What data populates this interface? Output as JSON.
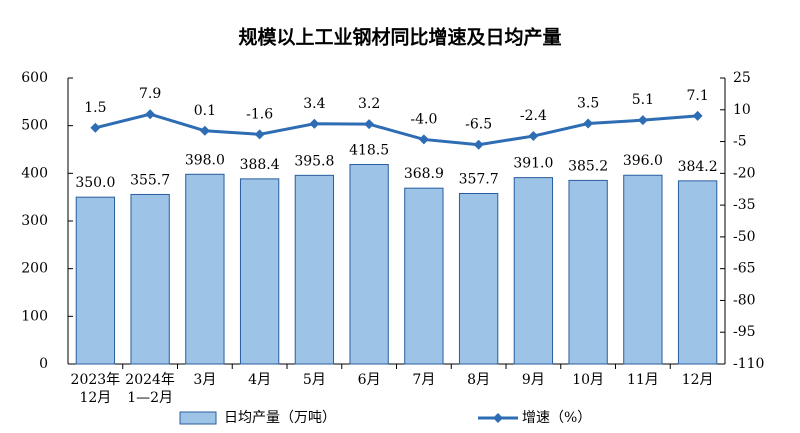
{
  "chart_data": {
    "type": "combo",
    "title": "规模以上工业钢材同比增速及日均产量",
    "categories": [
      [
        "2023年",
        "12月"
      ],
      [
        "2024年",
        "1—2月"
      ],
      [
        "3月"
      ],
      [
        "4月"
      ],
      [
        "5月"
      ],
      [
        "6月"
      ],
      [
        "7月"
      ],
      [
        "8月"
      ],
      [
        "9月"
      ],
      [
        "10月"
      ],
      [
        "11月"
      ],
      [
        "12月"
      ]
    ],
    "series": [
      {
        "name": "日均产量（万吨）",
        "type": "bar",
        "color": "#9dc3e6",
        "values": [
          350.0,
          355.7,
          398.0,
          388.4,
          395.8,
          418.5,
          368.9,
          357.7,
          391.0,
          385.2,
          396.0,
          384.2
        ],
        "value_labels": [
          "350.0",
          "355.7",
          "398.0",
          "388.4",
          "395.8",
          "418.5",
          "368.9",
          "357.7",
          "391.0",
          "385.2",
          "396.0",
          "384.2"
        ]
      },
      {
        "name": "增速（%）",
        "type": "line",
        "axis": "y2",
        "color": "#2e6db4",
        "values": [
          1.5,
          7.9,
          0.1,
          -1.6,
          3.4,
          3.2,
          -4.0,
          -6.5,
          -2.4,
          3.5,
          5.1,
          7.1
        ],
        "value_labels": [
          "1.5",
          "7.9",
          "0.1",
          "-1.6",
          "3.4",
          "3.2",
          "-4.0",
          "-6.5",
          "-2.4",
          "3.5",
          "5.1",
          "7.1"
        ]
      }
    ],
    "ylim": [
      0,
      600
    ],
    "yticks": [
      0,
      100,
      200,
      300,
      400,
      500,
      600
    ],
    "y2lim": [
      -110,
      25
    ],
    "y2ticks": [
      -110,
      -95,
      -80,
      -65,
      -50,
      -35,
      -20,
      -5,
      10,
      25
    ],
    "grid": false
  }
}
